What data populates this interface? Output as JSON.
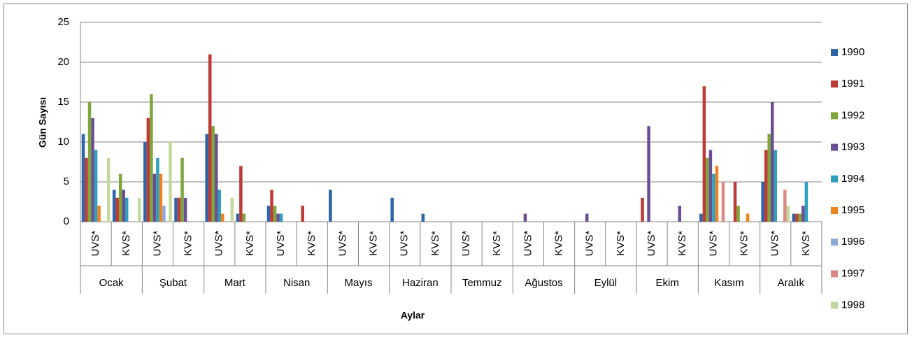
{
  "chart_data": {
    "type": "bar",
    "y_label": "Gün Sayısı",
    "x_label": "Aylar",
    "groups": [
      "Ocak",
      "Şubat",
      "Mart",
      "Nisan",
      "Mayıs",
      "Haziran",
      "Temmuz",
      "Ağustos",
      "Eylül",
      "Ekim",
      "Kasım",
      "Aralık"
    ],
    "categories": [
      "UVS*",
      "KVS*",
      "UVS*",
      "KVS*",
      "UVS*",
      "KVS*",
      "UVS*",
      "KVS*",
      "UVS*",
      "KVS*",
      "UVS*",
      "KVS*",
      "UVS*",
      "KVS*",
      "UVS*",
      "KVS*",
      "UVS*",
      "KVS*",
      "UVS*",
      "KVS*",
      "UVS*",
      "KVS*",
      "UVS*",
      "KVS*"
    ],
    "series": [
      {
        "name": "1990",
        "color": "#2e64a8",
        "values": [
          11,
          4,
          10,
          3,
          11,
          1,
          2,
          0,
          4,
          0,
          3,
          1,
          0,
          0,
          0,
          0,
          0,
          0,
          0,
          0,
          1,
          0,
          5,
          1
        ]
      },
      {
        "name": "1991",
        "color": "#be3a35",
        "values": [
          8,
          3,
          13,
          3,
          21,
          7,
          4,
          2,
          0,
          0,
          0,
          0,
          0,
          0,
          0,
          0,
          0,
          0,
          3,
          0,
          17,
          5,
          9,
          1
        ]
      },
      {
        "name": "1992",
        "color": "#7fa63a",
        "values": [
          15,
          6,
          16,
          8,
          12,
          1,
          2,
          0,
          0,
          0,
          0,
          0,
          0,
          0,
          0,
          0,
          0,
          0,
          0,
          0,
          8,
          2,
          11,
          1
        ]
      },
      {
        "name": "1993",
        "color": "#6a4e93",
        "values": [
          13,
          4,
          6,
          3,
          11,
          0,
          1,
          0,
          0,
          0,
          0,
          0,
          0,
          0,
          1,
          0,
          1,
          0,
          12,
          2,
          9,
          0,
          15,
          2
        ]
      },
      {
        "name": "1994",
        "color": "#2f9fbd",
        "values": [
          9,
          3,
          8,
          0,
          4,
          0,
          1,
          0,
          0,
          0,
          0,
          0,
          0,
          0,
          0,
          0,
          0,
          0,
          0,
          0,
          6,
          0,
          9,
          5
        ]
      },
      {
        "name": "1995",
        "color": "#f0821e",
        "values": [
          2,
          0,
          6,
          0,
          1,
          0,
          0,
          0,
          0,
          0,
          0,
          0,
          0,
          0,
          0,
          0,
          0,
          0,
          0,
          0,
          7,
          1,
          0,
          0
        ]
      },
      {
        "name": "1996",
        "color": "#8eaadb",
        "values": [
          0,
          0,
          2,
          0,
          0,
          0,
          0,
          0,
          0,
          0,
          0,
          0,
          0,
          0,
          0,
          0,
          0,
          0,
          0,
          0,
          0,
          0,
          0,
          0
        ]
      },
      {
        "name": "1997",
        "color": "#db8a88",
        "values": [
          0,
          0,
          0,
          0,
          0,
          0,
          0,
          0,
          0,
          0,
          0,
          0,
          0,
          0,
          0,
          0,
          0,
          0,
          0,
          0,
          5,
          0,
          4,
          0
        ]
      },
      {
        "name": "1998",
        "color": "#c3d99b",
        "values": [
          8,
          3,
          10,
          0,
          3,
          0,
          0,
          0,
          0,
          0,
          0,
          0,
          0,
          0,
          0,
          0,
          0,
          0,
          0,
          0,
          0,
          0,
          2,
          0
        ]
      }
    ],
    "ylim": [
      0,
      25
    ],
    "yticks": [
      0,
      5,
      10,
      15,
      20,
      25
    ],
    "grid": true,
    "legend": "right"
  }
}
